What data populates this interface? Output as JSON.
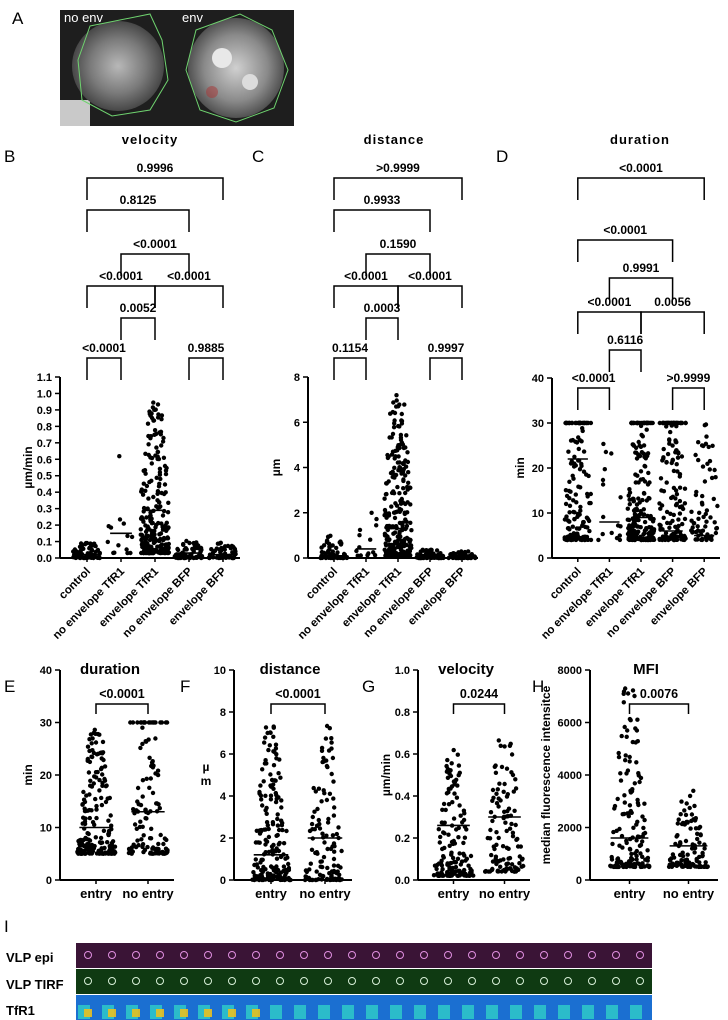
{
  "panel_labels": [
    "A",
    "B",
    "C",
    "D",
    "E",
    "F",
    "G",
    "H",
    "I"
  ],
  "micrographs": {
    "left_label": "no env",
    "right_label": "env"
  },
  "filmstrip": {
    "rows": [
      "VLP epi",
      "VLP TIRF",
      "TfR1"
    ]
  },
  "chart_data": [
    {
      "panel": "B",
      "type": "scatter",
      "title": "velocity",
      "ylabel": "µm/min",
      "ylim": [
        0,
        1.1
      ],
      "yticks": [
        "0.0",
        "0.1",
        "0.2",
        "0.3",
        "0.4",
        "0.5",
        "0.6",
        "0.7",
        "0.8",
        "0.9",
        "1.0",
        "1.1"
      ],
      "categories": [
        "control",
        "no envelope TfR1",
        "envelope TfR1",
        "no envelope BFP",
        "envelope BFP"
      ],
      "medians": [
        0.02,
        0.15,
        0.29,
        0.03,
        0.02
      ],
      "comparisons": [
        {
          "groups": [
            0,
            4
          ],
          "p": "0.9996"
        },
        {
          "groups": [
            0,
            3
          ],
          "p": "0.8125"
        },
        {
          "groups": [
            1,
            3
          ],
          "p": "<0.0001"
        },
        {
          "groups": [
            0,
            2
          ],
          "p": "<0.0001"
        },
        {
          "groups": [
            2,
            4
          ],
          "p": "<0.0001"
        },
        {
          "groups": [
            1,
            2
          ],
          "p": "0.0052"
        },
        {
          "groups": [
            0,
            1
          ],
          "p": "<0.0001"
        },
        {
          "groups": [
            3,
            4
          ],
          "p": "0.9885"
        }
      ]
    },
    {
      "panel": "C",
      "type": "scatter",
      "title": "distance",
      "ylabel": "µm",
      "ylim": [
        0,
        8
      ],
      "yticks": [
        "0",
        "2",
        "4",
        "6",
        "8"
      ],
      "categories": [
        "control",
        "no envelope TfR1",
        "envelope TfR1",
        "no envelope BFP",
        "envelope BFP"
      ],
      "medians": [
        0.1,
        0.4,
        1.3,
        0.15,
        0.1
      ],
      "comparisons": [
        {
          "groups": [
            0,
            4
          ],
          "p": ">0.9999"
        },
        {
          "groups": [
            0,
            3
          ],
          "p": "0.9933"
        },
        {
          "groups": [
            1,
            3
          ],
          "p": "0.1590"
        },
        {
          "groups": [
            0,
            2
          ],
          "p": "<0.0001"
        },
        {
          "groups": [
            2,
            4
          ],
          "p": "<0.0001"
        },
        {
          "groups": [
            1,
            2
          ],
          "p": "0.0003"
        },
        {
          "groups": [
            0,
            1
          ],
          "p": "0.1154"
        },
        {
          "groups": [
            3,
            4
          ],
          "p": "0.9997"
        }
      ]
    },
    {
      "panel": "D",
      "type": "scatter",
      "title": "duration",
      "ylabel": "min",
      "ylim": [
        0,
        40
      ],
      "yticks": [
        "0",
        "10",
        "20",
        "30",
        "40"
      ],
      "categories": [
        "control",
        "no envelope TfR1",
        "envelope TfR1",
        "no envelope BFP",
        "envelope BFP"
      ],
      "medians": [
        22,
        8,
        9,
        6,
        5
      ],
      "comparisons": [
        {
          "groups": [
            0,
            4
          ],
          "p": "<0.0001"
        },
        {
          "groups": [
            0,
            3
          ],
          "p": "<0.0001"
        },
        {
          "groups": [
            1,
            3
          ],
          "p": "0.9991"
        },
        {
          "groups": [
            0,
            2
          ],
          "p": "<0.0001"
        },
        {
          "groups": [
            2,
            4
          ],
          "p": "0.0056"
        },
        {
          "groups": [
            1,
            2
          ],
          "p": "0.6116"
        },
        {
          "groups": [
            0,
            1
          ],
          "p": "<0.0001"
        },
        {
          "groups": [
            3,
            4
          ],
          "p": ">0.9999"
        }
      ]
    },
    {
      "panel": "E",
      "type": "scatter",
      "title": "duration",
      "ylabel": "min",
      "ylim": [
        0,
        40
      ],
      "yticks": [
        "0",
        "10",
        "20",
        "30",
        "40"
      ],
      "categories": [
        "entry",
        "no entry"
      ],
      "medians": [
        10,
        13
      ],
      "comparisons": [
        {
          "groups": [
            0,
            1
          ],
          "p": "<0.0001"
        }
      ]
    },
    {
      "panel": "F",
      "type": "scatter",
      "title": "distance",
      "ylabel": "µ\nm",
      "ylim": [
        0,
        10
      ],
      "yticks": [
        "0",
        "2",
        "4",
        "6",
        "8",
        "10"
      ],
      "categories": [
        "entry",
        "no entry"
      ],
      "medians": [
        1.2,
        2.0
      ],
      "comparisons": [
        {
          "groups": [
            0,
            1
          ],
          "p": "<0.0001"
        }
      ]
    },
    {
      "panel": "G",
      "type": "scatter",
      "title": "velocity",
      "ylabel": "µm/min",
      "ylim": [
        0,
        1.0
      ],
      "yticks": [
        "0.0",
        "0.2",
        "0.4",
        "0.6",
        "0.8",
        "1.0"
      ],
      "categories": [
        "entry",
        "no entry"
      ],
      "medians": [
        0.26,
        0.3
      ],
      "comparisons": [
        {
          "groups": [
            0,
            1
          ],
          "p": "0.0244"
        }
      ]
    },
    {
      "panel": "H",
      "type": "scatter",
      "title": "MFI",
      "ylabel": "median fluorescence intensitce",
      "ylim": [
        0,
        8000
      ],
      "yticks": [
        "0",
        "2000",
        "4000",
        "6000",
        "8000"
      ],
      "categories": [
        "entry",
        "no entry"
      ],
      "medians": [
        1600,
        1300
      ],
      "comparisons": [
        {
          "groups": [
            0,
            1
          ],
          "p": "0.0076"
        }
      ]
    }
  ]
}
